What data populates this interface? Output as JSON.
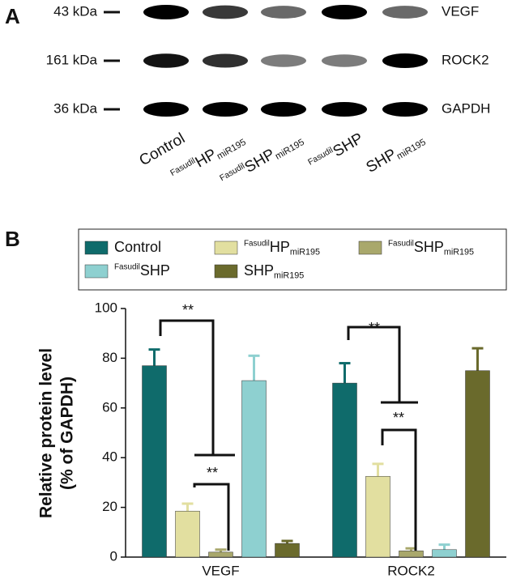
{
  "panel_a": {
    "label": "A",
    "markers": [
      "43 kDa",
      "161 kDa",
      "36 kDa"
    ],
    "proteins": [
      "VEGF",
      "ROCK2",
      "GAPDH"
    ],
    "lanes": [
      {
        "main": "Control"
      },
      {
        "sup": "Fasudil",
        "main": "HP",
        "sub": "miR195"
      },
      {
        "sup": "Fasudil",
        "main": "SHP",
        "sub": "miR195"
      },
      {
        "sup": "Fasudil",
        "main": "SHP"
      },
      {
        "main": "SHP",
        "sub": "miR195"
      }
    ]
  },
  "panel_b": {
    "label": "B"
  },
  "chart_data": {
    "type": "bar",
    "ylabel": [
      "Relative protein level",
      "(% of GAPDH)"
    ],
    "categories": [
      "VEGF",
      "ROCK2"
    ],
    "series": [
      {
        "name": "Control",
        "color": "#0f6b6b",
        "values": [
          77,
          70
        ],
        "errors": [
          6.5,
          8
        ]
      },
      {
        "sup": "Fasudil",
        "name": "HP",
        "sub": "miR195",
        "color": "#e2dfa0",
        "values": [
          18.5,
          32.5
        ],
        "errors": [
          3,
          5
        ]
      },
      {
        "sup": "Fasudil",
        "name": "SHP",
        "sub": "miR195",
        "color": "#a9a86c",
        "values": [
          2,
          2.5
        ],
        "errors": [
          1,
          1
        ]
      },
      {
        "sup": "Fasudil",
        "name": "SHP",
        "color": "#8ed0d0",
        "values": [
          71,
          3
        ],
        "errors": [
          10,
          2
        ]
      },
      {
        "name": "SHP",
        "sub": "miR195",
        "color": "#6a6a2c",
        "values": [
          5.5,
          75
        ],
        "errors": [
          1,
          9
        ]
      }
    ],
    "ylim": [
      0,
      100
    ],
    "yticks": [
      0,
      20,
      40,
      60,
      80,
      100
    ],
    "annotations": [
      "**",
      "**",
      "**",
      "**"
    ]
  }
}
